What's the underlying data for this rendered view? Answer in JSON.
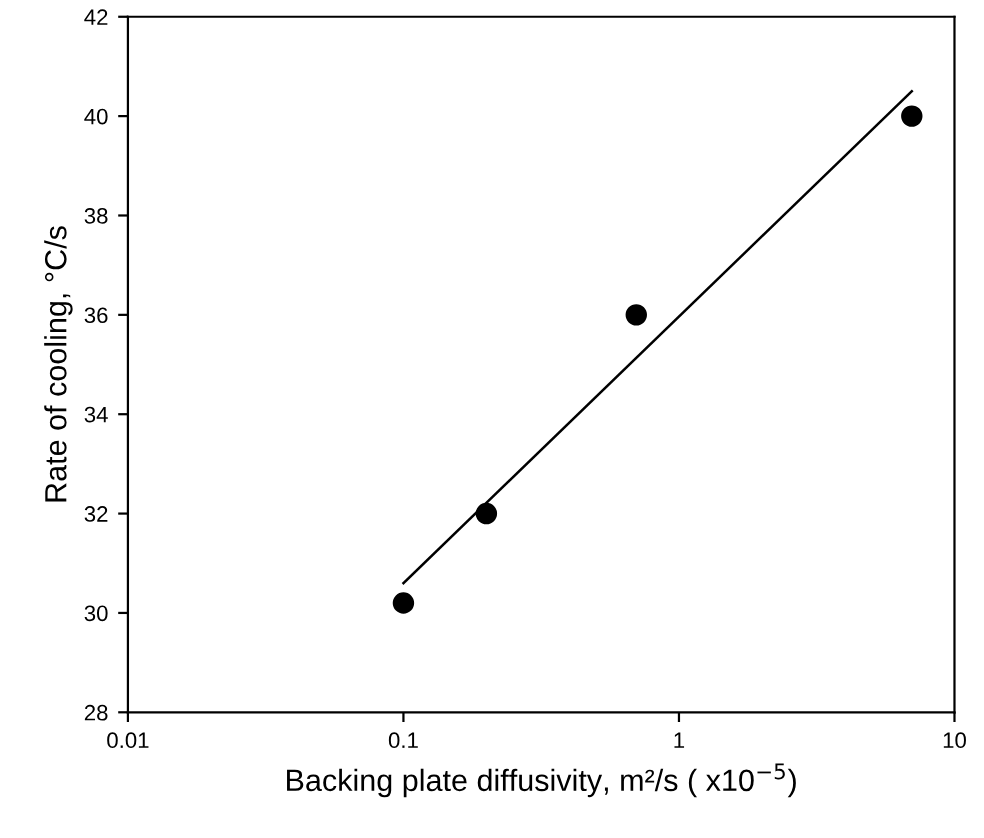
{
  "chart_data": {
    "type": "scatter",
    "xlabel": "Backing plate diffusivity, m²/s ( x10$^{−5}$)",
    "ylabel": "Rate of cooling, °C/s",
    "log": "x",
    "xlim": [
      0.01,
      10
    ],
    "xticks": [
      0.01,
      0.1,
      1,
      10
    ],
    "ylim": [
      28,
      42
    ],
    "yticks": [
      28,
      30,
      32,
      34,
      36,
      38,
      40,
      42
    ],
    "grid": false,
    "legend": false,
    "series": [
      {
        "color": "#000000",
        "marker": "circle",
        "x": [
          0.1,
          0.2,
          0.7,
          7
        ],
        "values": [
          30.2,
          32,
          36,
          40
        ]
      },
      {
        "type": "line",
        "color": "#000000",
        "marker": "none",
        "line_style": "solid",
        "x": [
          0.1,
          7
        ],
        "values": [
          30.6,
          40.5
        ]
      }
    ]
  }
}
